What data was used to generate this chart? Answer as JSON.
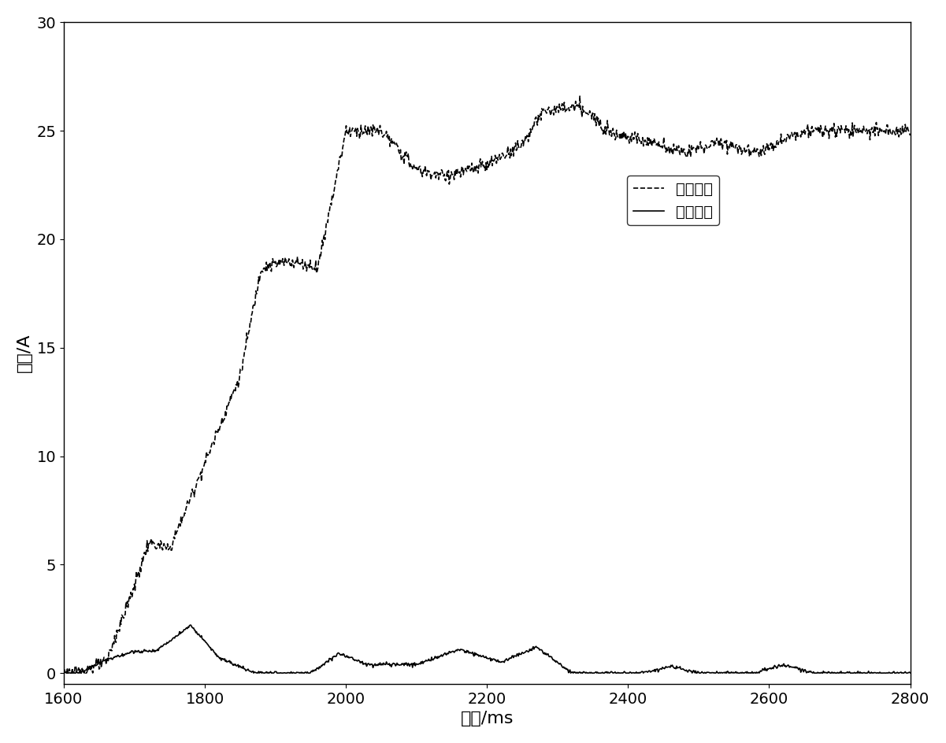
{
  "xlim": [
    1600,
    2800
  ],
  "ylim": [
    -0.5,
    30
  ],
  "xticks": [
    1600,
    1800,
    2000,
    2200,
    2400,
    2600,
    2800
  ],
  "yticks": [
    0,
    5,
    10,
    15,
    20,
    25,
    30
  ],
  "xlabel": "时间/ms",
  "ylabel": "幅値/A",
  "legend_labels": [
    "差动电流",
    "制动电流"
  ],
  "line1_color": "#000000",
  "line2_color": "#000000",
  "background_color": "#ffffff",
  "legend_fontsize": 14,
  "axis_fontsize": 16,
  "tick_fontsize": 14
}
